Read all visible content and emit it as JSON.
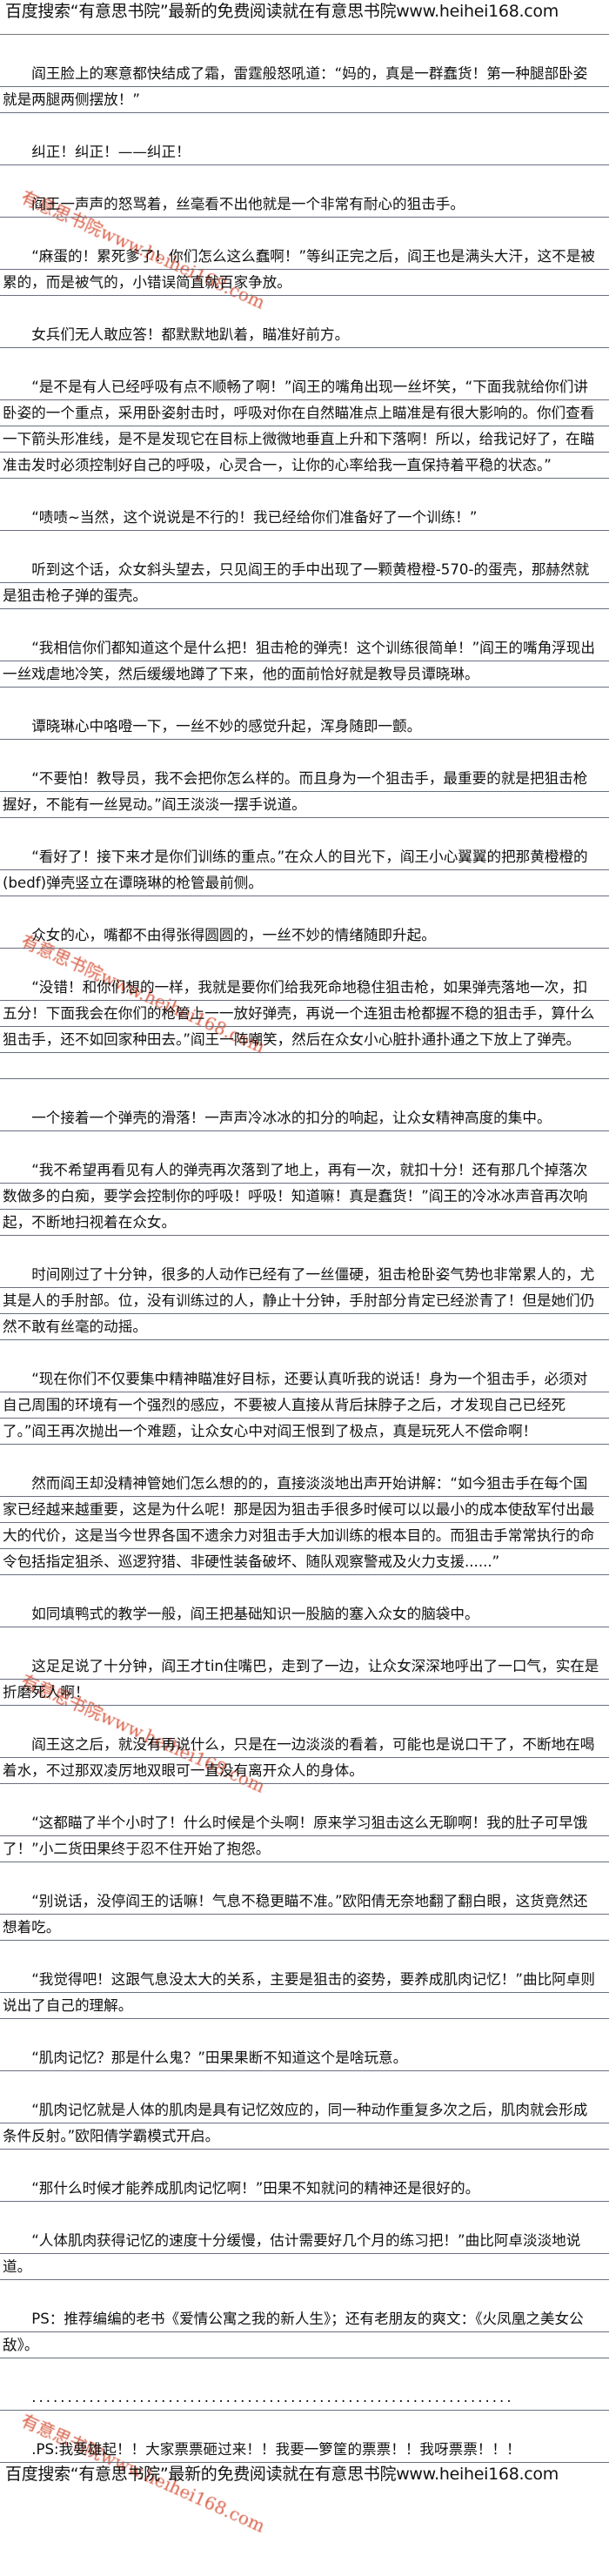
{
  "header": {
    "banner": "百度搜索“有意思书院”最新的免费阅读就在有意思书院www.heihei168.com"
  },
  "footer": {
    "banner": "百度搜索“有意思书院”最新的免费阅读就在有意思书院www.heihei168.com"
  },
  "watermark": {
    "text": "有意思书院www.heihei168.com",
    "color": "#d2452a"
  },
  "paragraphs": [
    "阎王脸上的寒意都快结成了霜，雷霆般怒吼道：“妈的，真是一群蠢货！第一种腿部卧姿就是两腿两侧摆放！”",
    "纠正！纠正！——纠正！",
    "阎王一声声的怒骂着，丝毫看不出他就是一个非常有耐心的狙击手。",
    "“麻蛋的！累死爹了！你们怎么这么蠢啊！”等纠正完之后，阎王也是满头大汗，这不是被累的，而是被气的，小错误简直就百家争放。",
    "女兵们无人敢应答！都默默地趴着，瞄准好前方。",
    "“是不是有人已经呼吸有点不顺畅了啊！”阎王的嘴角出现一丝坏笑，“下面我就给你们讲卧姿的一个重点，采用卧姿射击时，呼吸对你在自然瞄准点上瞄准是有很大影响的。你们查看一下箭头形准线，是不是发现它在目标上微微地垂直上升和下落啊！所以，给我记好了，在瞄准击发时必须控制好自己的呼吸，心灵合一，让你的心率给我一直保持着平稳的状态。”",
    "“啧啧~当然，这个说说是不行的！我已经给你们准备好了一个训练！”",
    "听到这个话，众女斜头望去，只见阎王的手中出现了一颗黄橙橙-570-的蛋壳，那赫然就是狙击枪子弹的蛋壳。",
    "“我相信你们都知道这个是什么把！狙击枪的弹壳！这个训练很简单！”阎王的嘴角浮现出一丝戏虐地冷笑，然后缓缓地蹲了下来，他的面前恰好就是教导员谭晓琳。",
    "谭晓琳心中咯噔一下，一丝不妙的感觉升起，浑身随即一颤。",
    "“不要怕！教导员，我不会把你怎么样的。而且身为一个狙击手，最重要的就是把狙击枪握好，不能有一丝晃动。”阎王淡淡一摆手说道。",
    "“看好了！接下来才是你们训练的重点。”在众人的目光下，阎王小心翼翼的把那黄橙橙的(bedf)弹壳竖立在谭晓琳的枪管最前侧。",
    "众女的心，嘴都不由得张得圆圆的，一丝不妙的情绪随即升起。",
    "“没错！和你们想的一样，我就是要你们给我死命地稳住狙击枪，如果弹壳落地一次，扣五分！下面我会在你们的枪管上一一放好弹壳，再说一个连狙击枪都握不稳的狙击手，算什么狙击手，还不如回家种田去。”阎王一阵嘲笑，然后在众女小心脏扑通扑通之下放上了弹壳。",
    "一个接着一个弹壳的滑落！一声声冷冰冰的扣分的响起，让众女精神高度的集中。",
    "“我不希望再看见有人的弹壳再次落到了地上，再有一次，就扣十分！还有那几个掉落次数做多的白痴，要学会控制你的呼吸！呼吸！知道嘛！真是蠢货！”阎王的冷冰冰声音再次响起，不断地扫视着在众女。",
    "时间刚过了十分钟，很多的人动作已经有了一丝僵硬，狙击枪卧姿气势也非常累人的，尤其是人的手肘部。位，没有训练过的人，静止十分钟，手肘部分肯定已经淤青了！但是她们仍然不敢有丝毫的动摇。",
    "“现在你们不仅要集中精神瞄准好目标，还要认真听我的说话！身为一个狙击手，必须对自己周围的环境有一个强烈的感应，不要被人直接从背后抹脖子之后，才发现自己已经死了。”阎王再次抛出一个难题，让众女心中对阎王恨到了极点，真是玩死人不偿命啊！",
    "然而阎王却没精神管她们怎么想的的，直接淡淡地出声开始讲解：“如今狙击手在每个国家已经越来越重要，这是为什么呢！那是因为狙击手很多时候可以以最小的成本使敌军付出最大的代价，这是当今世界各国不遗余力对狙击手大加训练的根本目的。而狙击手常常执行的命令包括指定狙杀、巡逻狩猎、非硬性装备破坏、随队观察警戒及火力支援......”",
    "如同填鸭式的教学一般，阎王把基础知识一股脑的塞入众女的脑袋中。",
    "这足足说了十分钟，阎王才tin住嘴巴，走到了一边，让众女深深地呼出了一口气，实在是折磨死人啊！",
    "阎王这之后，就没有再说什么，只是在一边淡淡的看着，可能也是说口干了，不断地在喝着水，不过那双凌厉地双眼可一直没有离开众人的身体。",
    "“这都瞄了半个小时了！什么时候是个头啊！原来学习狙击这么无聊啊！我的肚子可早饿了！”小二货田果终于忍不住开始了抱怨。",
    "“别说话，没停阎王的话嘛！气息不稳更瞄不准。”欧阳倩无奈地翻了翻白眼，这货竟然还想着吃。",
    "“我觉得吧！这跟气息没太大的关系，主要是狙击的姿势，要养成肌肉记忆！”曲比阿卓则说出了自己的理解。",
    "“肌肉记忆？那是什么鬼？”田果果断不知道这个是啥玩意。",
    "“肌肉记忆就是人体的肌肉是具有记忆效应的，同一种动作重复多次之后，肌肉就会形成条件反射。”欧阳倩学霸模式开启。",
    "“那什么时候才能养成肌肉记忆啊！”田果不知就问的精神还是很好的。",
    "“人体肌肉获得记忆的速度十分缓慢，估计需要好几个月的练习把！”曲比阿卓淡淡地说道。",
    "PS：推荐编编的老书《爱情公寓之我的新人生》；还有老朋友的爽文：《火凤凰之美女公敌》。",
    "...................................................................",
    ".PS:我要雄起！！大家票票砸过来！！我要一箩筐的票票！！我呀票票！！！"
  ]
}
